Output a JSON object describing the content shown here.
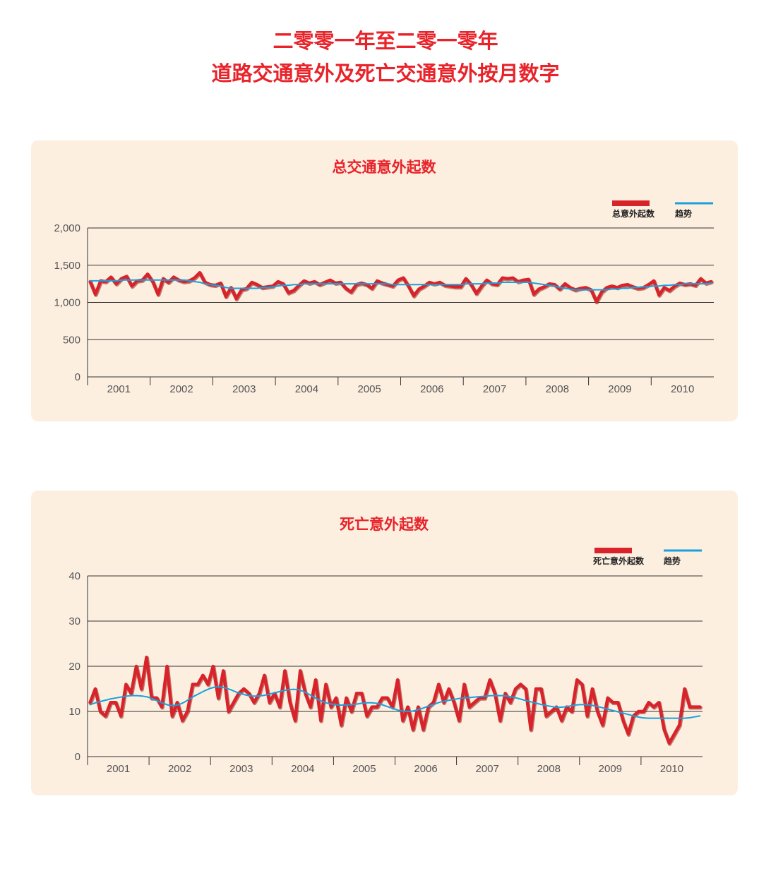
{
  "title": {
    "line1": "二零零一年至二零一零年",
    "line2": "道路交通意外及死亡交通意外按月数字"
  },
  "colors": {
    "title": "#e8232a",
    "series": "#d9232a",
    "trend": "#1aa0dc",
    "panel": "#fcefe0"
  },
  "chart_data": [
    {
      "type": "line",
      "title": "总交通意外起数",
      "xlabel": "",
      "ylabel": "",
      "ylim": [
        0,
        2000
      ],
      "yticks": [
        0,
        500,
        1000,
        1500,
        2000
      ],
      "ytick_labels": [
        "0",
        "500",
        "1,000",
        "1,500",
        "2,000"
      ],
      "years": [
        "2001",
        "2002",
        "2003",
        "2004",
        "2005",
        "2006",
        "2007",
        "2008",
        "2009",
        "2010"
      ],
      "legend": {
        "position": "top-right",
        "series_label": "总意外起数",
        "trend_label": "趋势"
      },
      "series": [
        {
          "name": "总意外起数",
          "style": "red-thick",
          "values": [
            1280,
            1110,
            1290,
            1280,
            1340,
            1250,
            1320,
            1350,
            1220,
            1290,
            1300,
            1380,
            1280,
            1110,
            1320,
            1270,
            1340,
            1300,
            1280,
            1290,
            1330,
            1400,
            1270,
            1240,
            1230,
            1260,
            1080,
            1200,
            1050,
            1170,
            1190,
            1270,
            1240,
            1200,
            1210,
            1220,
            1280,
            1250,
            1130,
            1160,
            1230,
            1290,
            1260,
            1280,
            1240,
            1270,
            1300,
            1260,
            1270,
            1190,
            1140,
            1240,
            1260,
            1240,
            1190,
            1290,
            1260,
            1240,
            1220,
            1300,
            1330,
            1220,
            1090,
            1180,
            1220,
            1270,
            1250,
            1270,
            1230,
            1220,
            1210,
            1210,
            1320,
            1240,
            1120,
            1220,
            1300,
            1250,
            1240,
            1330,
            1320,
            1330,
            1280,
            1300,
            1310,
            1110,
            1180,
            1210,
            1250,
            1240,
            1180,
            1250,
            1200,
            1170,
            1190,
            1200,
            1170,
            1010,
            1140,
            1200,
            1220,
            1200,
            1230,
            1240,
            1210,
            1190,
            1200,
            1240,
            1290,
            1100,
            1200,
            1160,
            1220,
            1260,
            1240,
            1250,
            1230,
            1320,
            1260,
            1280
          ]
        },
        {
          "name": "趋势",
          "style": "blue-thin",
          "values": [
            1290,
            1290,
            1290,
            1290,
            1290,
            1290,
            1300,
            1300,
            1300,
            1300,
            1300,
            1300,
            1300,
            1300,
            1300,
            1300,
            1300,
            1300,
            1300,
            1290,
            1280,
            1270,
            1250,
            1240,
            1230,
            1220,
            1200,
            1190,
            1190,
            1190,
            1190,
            1190,
            1190,
            1200,
            1200,
            1210,
            1220,
            1230,
            1230,
            1240,
            1240,
            1250,
            1250,
            1250,
            1250,
            1250,
            1250,
            1250,
            1250,
            1250,
            1250,
            1250,
            1250,
            1250,
            1250,
            1250,
            1250,
            1250,
            1240,
            1240,
            1240,
            1240,
            1240,
            1240,
            1240,
            1240,
            1240,
            1240,
            1240,
            1240,
            1240,
            1240,
            1250,
            1250,
            1250,
            1250,
            1260,
            1260,
            1260,
            1270,
            1270,
            1270,
            1270,
            1270,
            1270,
            1260,
            1250,
            1240,
            1230,
            1220,
            1200,
            1190,
            1180,
            1170,
            1170,
            1170,
            1170,
            1170,
            1170,
            1170,
            1180,
            1180,
            1190,
            1190,
            1200,
            1200,
            1210,
            1210,
            1220,
            1220,
            1230,
            1230,
            1240,
            1240,
            1250,
            1250,
            1250,
            1250,
            1250,
            1260
          ]
        }
      ]
    },
    {
      "type": "line",
      "title": "死亡意外起数",
      "xlabel": "",
      "ylabel": "",
      "ylim": [
        0,
        40
      ],
      "yticks": [
        0,
        10,
        20,
        30,
        40
      ],
      "ytick_labels": [
        "0",
        "10",
        "20",
        "30",
        "40"
      ],
      "years": [
        "2001",
        "2002",
        "2003",
        "2004",
        "2005",
        "2006",
        "2007",
        "2008",
        "2009",
        "2010"
      ],
      "legend": {
        "position": "top-right",
        "series_label": "死亡意外起数",
        "trend_label": "趋势"
      },
      "series": [
        {
          "name": "死亡意外起数",
          "style": "red-thick",
          "values": [
            12,
            15,
            10,
            9,
            12,
            12,
            9,
            16,
            14,
            20,
            15,
            22,
            13,
            13,
            11,
            20,
            9,
            12,
            8,
            10,
            16,
            16,
            18,
            16,
            20,
            13,
            19,
            10,
            12,
            14,
            15,
            14,
            12,
            14,
            18,
            12,
            14,
            11,
            19,
            12,
            8,
            19,
            14,
            11,
            17,
            8,
            16,
            11,
            13,
            7,
            13,
            10,
            14,
            14,
            9,
            11,
            11,
            13,
            13,
            11,
            17,
            8,
            11,
            6,
            11,
            6,
            11,
            12,
            16,
            12,
            15,
            12,
            8,
            16,
            11,
            12,
            13,
            13,
            17,
            14,
            8,
            14,
            12,
            15,
            16,
            15,
            6,
            15,
            15,
            9,
            10,
            11,
            8,
            11,
            10,
            17,
            16,
            9,
            15,
            10,
            7,
            13,
            12,
            12,
            8,
            5,
            9,
            10,
            10,
            12,
            11,
            12,
            6,
            3,
            5,
            7,
            15,
            11,
            11,
            11
          ]
        },
        {
          "name": "趋势",
          "style": "blue-thin",
          "values": [
            11.5,
            11.9,
            12.2,
            12.5,
            12.8,
            13.0,
            13.2,
            13.4,
            13.5,
            13.5,
            13.4,
            13.2,
            12.8,
            12.3,
            11.8,
            11.4,
            11.3,
            11.5,
            12.0,
            12.7,
            13.4,
            14.0,
            14.6,
            15.1,
            15.4,
            15.4,
            15.2,
            14.8,
            14.3,
            13.9,
            13.6,
            13.4,
            13.4,
            13.5,
            13.7,
            14.0,
            14.3,
            14.6,
            14.8,
            14.9,
            14.8,
            14.4,
            13.8,
            13.1,
            12.5,
            12.0,
            11.7,
            11.5,
            11.4,
            11.4,
            11.5,
            11.6,
            11.8,
            11.9,
            11.9,
            11.8,
            11.5,
            11.1,
            10.7,
            10.3,
            10.1,
            10.0,
            10.1,
            10.4,
            10.8,
            11.2,
            11.6,
            12.0,
            12.3,
            12.5,
            12.7,
            12.9,
            13.0,
            13.1,
            13.2,
            13.3,
            13.4,
            13.5,
            13.5,
            13.5,
            13.4,
            13.2,
            12.9,
            12.6,
            12.3,
            12.0,
            11.7,
            11.4,
            11.2,
            11.0,
            10.9,
            11.0,
            11.2,
            11.4,
            11.5,
            11.5,
            11.4,
            11.2,
            10.9,
            10.6,
            10.3,
            10.0,
            9.7,
            9.4,
            9.1,
            8.8,
            8.6,
            8.5,
            8.5,
            8.5,
            8.5,
            8.5,
            8.5,
            8.5,
            8.5,
            8.6,
            8.8,
            9.0
          ]
        }
      ]
    }
  ]
}
